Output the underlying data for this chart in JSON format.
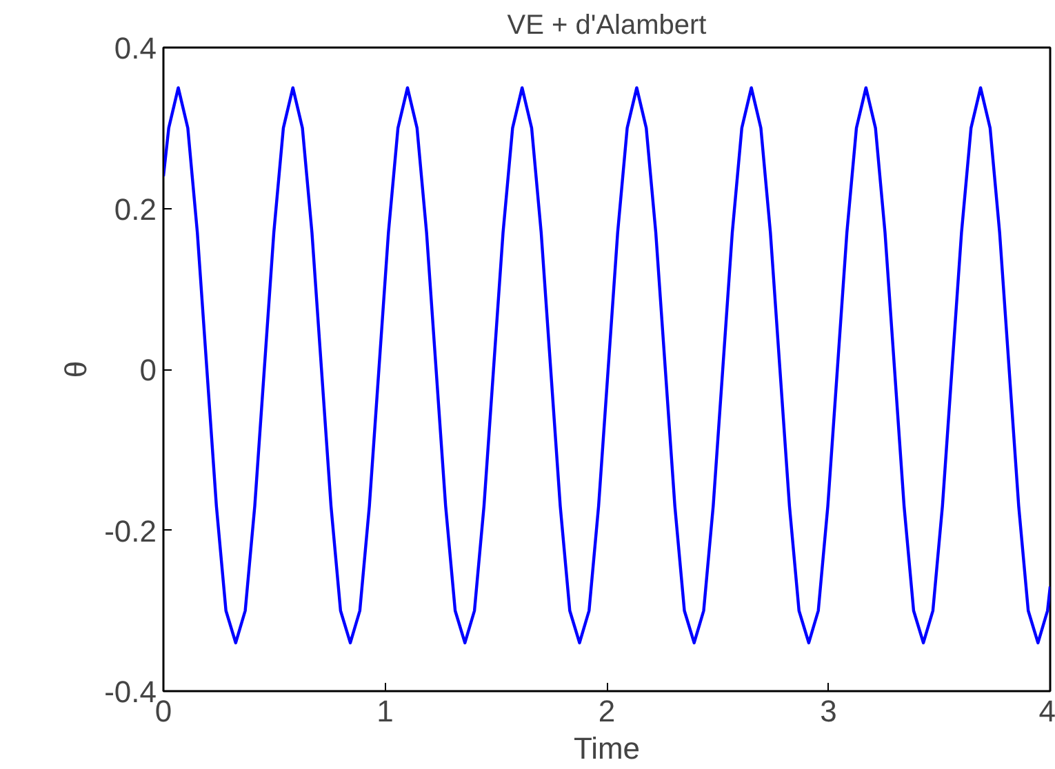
{
  "chart_data": {
    "type": "line",
    "title": "VE + d'Alambert",
    "xlabel": "Time",
    "ylabel": "θ",
    "xlim": [
      0,
      4
    ],
    "ylim": [
      -0.4,
      0.4
    ],
    "xticks": [
      0,
      1,
      2,
      3,
      4
    ],
    "yticks": [
      -0.4,
      -0.2,
      0,
      0.2,
      0.4
    ],
    "grid": false,
    "marker": "none",
    "line_style": "solid",
    "series": [
      {
        "color": "#0000ff",
        "x": [
          0,
          0.024,
          0.067,
          0.11,
          0.153,
          0.196,
          0.239,
          0.282,
          0.326,
          0.369,
          0.412,
          0.455,
          0.498,
          0.541,
          0.584,
          0.627,
          0.67,
          0.713,
          0.756,
          0.799,
          0.843,
          0.886,
          0.929,
          0.972,
          1.015,
          1.058,
          1.101,
          1.144,
          1.187,
          1.23,
          1.273,
          1.316,
          1.36,
          1.403,
          1.446,
          1.489,
          1.532,
          1.575,
          1.618,
          1.661,
          1.704,
          1.747,
          1.79,
          1.833,
          1.877,
          1.92,
          1.963,
          2.006,
          2.049,
          2.092,
          2.135,
          2.178,
          2.221,
          2.264,
          2.307,
          2.35,
          2.394,
          2.437,
          2.48,
          2.523,
          2.566,
          2.609,
          2.652,
          2.695,
          2.738,
          2.781,
          2.824,
          2.867,
          2.911,
          2.954,
          2.997,
          3.04,
          3.083,
          3.126,
          3.169,
          3.212,
          3.255,
          3.298,
          3.341,
          3.384,
          3.428,
          3.471,
          3.514,
          3.557,
          3.6,
          3.643,
          3.686,
          3.729,
          3.772,
          3.815,
          3.858,
          3.901,
          3.945,
          3.988,
          4
        ],
        "values": [
          0.24,
          0.3,
          0.35,
          0.3,
          0.17,
          0,
          -0.17,
          -0.3,
          -0.34,
          -0.3,
          -0.17,
          0,
          0.17,
          0.3,
          0.35,
          0.3,
          0.17,
          0,
          -0.17,
          -0.3,
          -0.34,
          -0.3,
          -0.17,
          0,
          0.17,
          0.3,
          0.35,
          0.3,
          0.17,
          0,
          -0.17,
          -0.3,
          -0.34,
          -0.3,
          -0.17,
          0,
          0.17,
          0.3,
          0.35,
          0.3,
          0.17,
          0,
          -0.17,
          -0.3,
          -0.34,
          -0.3,
          -0.17,
          0,
          0.17,
          0.3,
          0.35,
          0.3,
          0.17,
          0,
          -0.17,
          -0.3,
          -0.34,
          -0.3,
          -0.17,
          0,
          0.17,
          0.3,
          0.35,
          0.3,
          0.17,
          0,
          -0.17,
          -0.3,
          -0.34,
          -0.3,
          -0.17,
          0,
          0.17,
          0.3,
          0.35,
          0.3,
          0.17,
          0,
          -0.17,
          -0.3,
          -0.34,
          -0.3,
          -0.17,
          0,
          0.17,
          0.3,
          0.35,
          0.3,
          0.17,
          0,
          -0.17,
          -0.3,
          -0.34,
          -0.3,
          -0.27
        ]
      }
    ]
  }
}
